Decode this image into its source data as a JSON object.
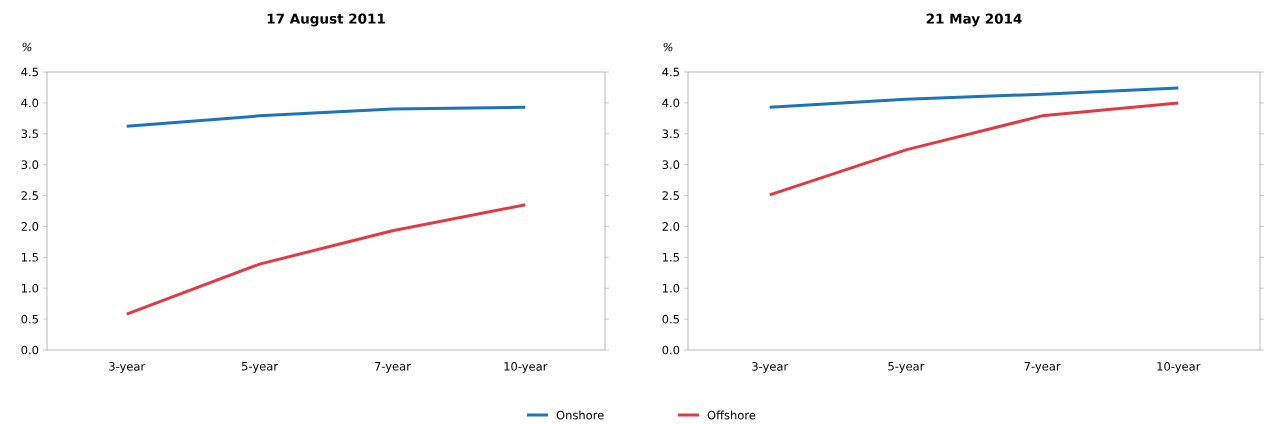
{
  "chart_data": [
    {
      "type": "line",
      "title": "17 August 2011",
      "ylabel": "%",
      "categories": [
        "3-year",
        "5-year",
        "7-year",
        "10-year"
      ],
      "series": [
        {
          "name": "Onshore",
          "color": "#1f74b8",
          "values": [
            3.62,
            3.79,
            3.9,
            3.93
          ]
        },
        {
          "name": "Offshore",
          "color": "#e03a45",
          "values": [
            0.58,
            1.39,
            1.93,
            2.35
          ]
        }
      ],
      "ylim": [
        0,
        4.5
      ],
      "yticks": [
        {
          "value": 0,
          "label": "0.0"
        },
        0.5,
        {
          "value": 1,
          "label": "1.0"
        },
        1.5,
        {
          "value": 2,
          "label": "2.0"
        },
        2.5,
        {
          "value": 3,
          "label": "3.0"
        },
        3.5,
        {
          "value": 4,
          "label": "4.0"
        },
        4.5
      ],
      "legend": "bottom",
      "marker": "none",
      "line_style": "solid"
    },
    {
      "type": "line",
      "title": "21 May 2014",
      "ylabel": "%",
      "categories": [
        "3-year",
        "5-year",
        "7-year",
        "10-year"
      ],
      "series": [
        {
          "color": "#1f74b8",
          "values": [
            3.93,
            4.06,
            4.14,
            4.24
          ]
        },
        {
          "color": "#e03a45",
          "values": [
            2.51,
            3.24,
            3.79,
            4.0
          ]
        }
      ],
      "ylim": [
        0,
        4.5
      ],
      "yticks": [
        {
          "value": 0,
          "label": "0.0"
        },
        0.5,
        {
          "value": 1,
          "label": "1.0"
        },
        1.5,
        {
          "value": 2,
          "label": "2.0"
        },
        2.5,
        {
          "value": 3,
          "label": "3.0"
        },
        3.5,
        {
          "value": 4,
          "label": "4.0"
        },
        4.5
      ],
      "marker": "none",
      "line_style": "solid"
    }
  ]
}
